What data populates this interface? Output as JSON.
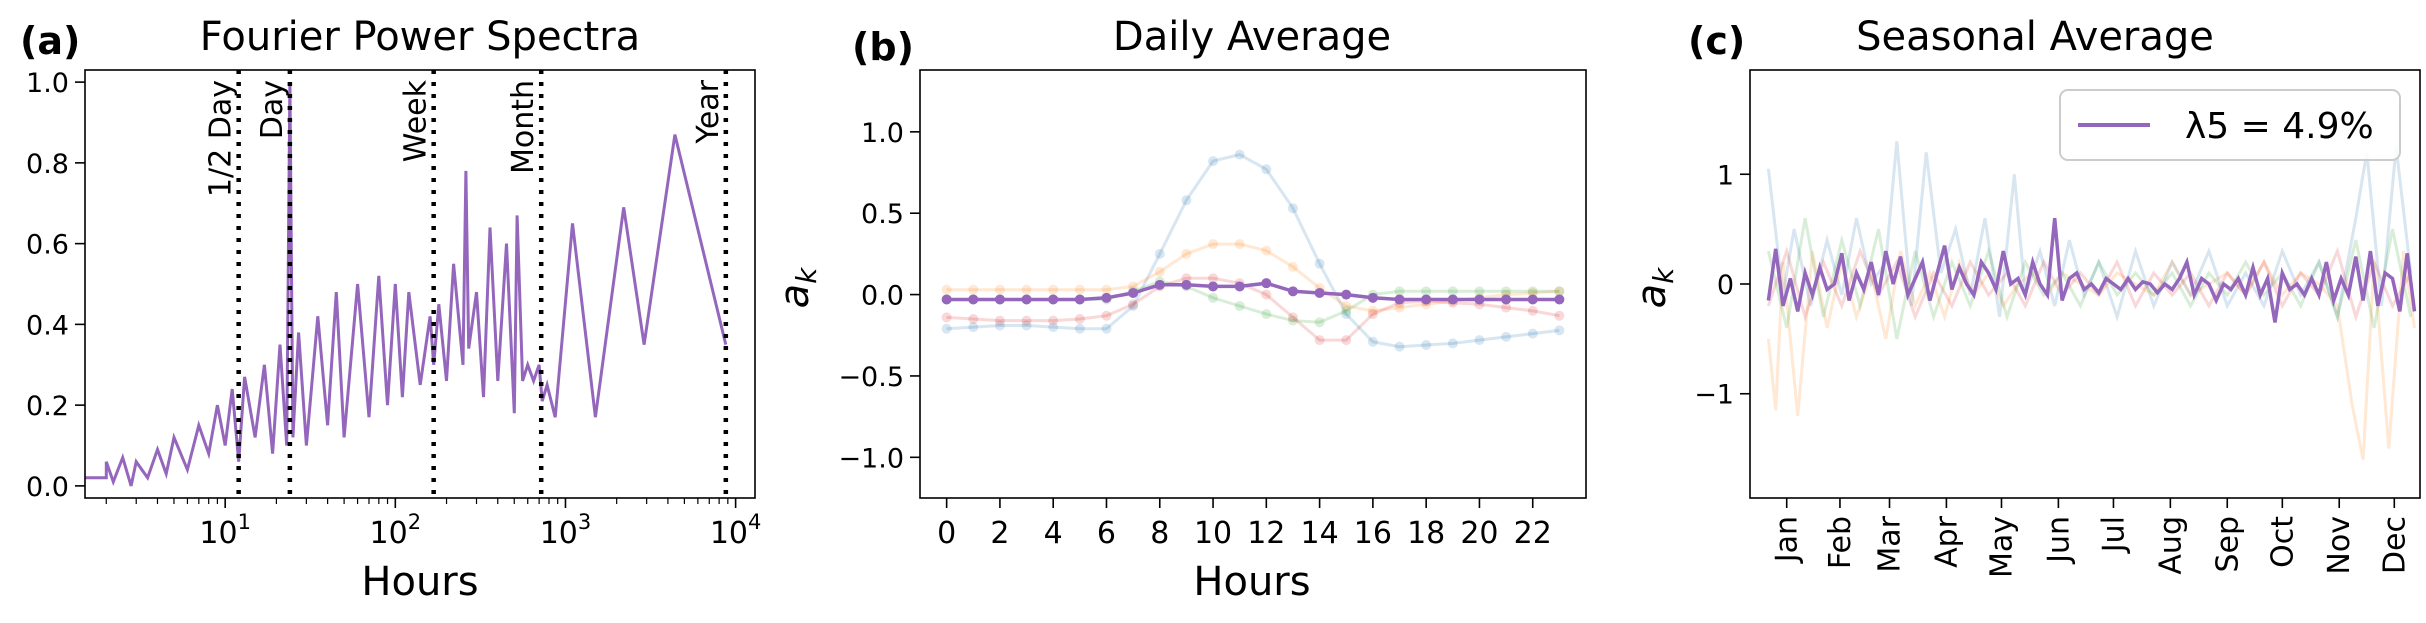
{
  "colors": {
    "main": "#9467bd",
    "faint": [
      "#1f77b4",
      "#ff7f0e",
      "#2ca02c",
      "#d62728"
    ],
    "marker_line": "#000000"
  },
  "chart_data": [
    {
      "type": "line",
      "panel_label": "(a)",
      "title": "Fourier Power Spectra",
      "xlabel": "Hours",
      "ylabel": "",
      "x_scale": "log",
      "xlim": [
        1.5,
        13000
      ],
      "ylim": [
        -0.03,
        1.03
      ],
      "x_ticks": [
        {
          "value": 10,
          "base": "10",
          "exp": "1"
        },
        {
          "value": 100,
          "base": "10",
          "exp": "2"
        },
        {
          "value": 1000,
          "base": "10",
          "exp": "3"
        },
        {
          "value": 10000,
          "base": "10",
          "exp": "4"
        }
      ],
      "y_ticks": [
        "0.0",
        "0.2",
        "0.4",
        "0.6",
        "0.8",
        "1.0"
      ],
      "y_tick_values": [
        0,
        0.2,
        0.4,
        0.6,
        0.8,
        1.0
      ],
      "markers": [
        {
          "label": "1/2 Day",
          "x": 12
        },
        {
          "label": "Day",
          "x": 24
        },
        {
          "label": "Week",
          "x": 168
        },
        {
          "label": "Month",
          "x": 720
        },
        {
          "label": "Year",
          "x": 8760
        }
      ],
      "series": [
        {
          "x": [
            1.5,
            2.0,
            2.0,
            2.2,
            2.5,
            2.8,
            3.0,
            3.5,
            4.0,
            4.5,
            5.0,
            6.0,
            7.0,
            8.0,
            9.0,
            10.0,
            11.0,
            12.0,
            13.0,
            15.0,
            17.0,
            19.0,
            21.0,
            23.0,
            24.0,
            25.0,
            27.0,
            30.0,
            35.0,
            40.0,
            45.0,
            50.0,
            60.0,
            70.0,
            80.0,
            90.0,
            100.0,
            110.0,
            120.0,
            140.0,
            160.0,
            168.0,
            180.0,
            200.0,
            220.0,
            250.0,
            260.0,
            270.0,
            300.0,
            330.0,
            360.0,
            400.0,
            450.0,
            500.0,
            520.0,
            560.0,
            600.0,
            650.0,
            700.0,
            730.0,
            780.0,
            870.0,
            1100.0,
            1500.0,
            2200.0,
            2900.0,
            4400.0,
            8760.0
          ],
          "y": [
            0.02,
            0.02,
            0.06,
            0.01,
            0.07,
            0.0,
            0.06,
            0.02,
            0.09,
            0.03,
            0.12,
            0.04,
            0.15,
            0.08,
            0.2,
            0.1,
            0.24,
            0.06,
            0.27,
            0.12,
            0.3,
            0.08,
            0.35,
            0.1,
            1.0,
            0.12,
            0.38,
            0.1,
            0.42,
            0.15,
            0.48,
            0.12,
            0.5,
            0.17,
            0.52,
            0.2,
            0.5,
            0.22,
            0.48,
            0.25,
            0.42,
            0.3,
            0.45,
            0.26,
            0.55,
            0.3,
            0.78,
            0.34,
            0.48,
            0.22,
            0.64,
            0.26,
            0.6,
            0.18,
            0.67,
            0.26,
            0.3,
            0.26,
            0.3,
            0.21,
            0.25,
            0.17,
            0.65,
            0.17,
            0.69,
            0.35,
            0.87,
            0.35
          ]
        }
      ]
    },
    {
      "type": "line",
      "panel_label": "(b)",
      "title": "Daily Average",
      "xlabel": "Hours",
      "ylabel": "a_k",
      "xlim": [
        -1,
        24
      ],
      "ylim": [
        -1.25,
        1.38
      ],
      "x_ticks": [
        "0",
        "2",
        "4",
        "6",
        "8",
        "10",
        "12",
        "14",
        "16",
        "18",
        "20",
        "22"
      ],
      "x_tick_values": [
        0,
        2,
        4,
        6,
        8,
        10,
        12,
        14,
        16,
        18,
        20,
        22
      ],
      "y_ticks": [
        "1.0",
        "0.5",
        "0.0",
        "−0.5",
        "−1.0"
      ],
      "y_tick_values": [
        1.0,
        0.5,
        0.0,
        -0.5,
        -1.0
      ],
      "x": [
        0,
        1,
        2,
        3,
        4,
        5,
        6,
        7,
        8,
        9,
        10,
        11,
        12,
        13,
        14,
        15,
        16,
        17,
        18,
        19,
        20,
        21,
        22,
        23
      ],
      "series": [
        {
          "y": [
            -0.21,
            -0.2,
            -0.19,
            -0.19,
            -0.2,
            -0.21,
            -0.21,
            -0.07,
            0.25,
            0.58,
            0.82,
            0.86,
            0.77,
            0.53,
            0.19,
            -0.12,
            -0.29,
            -0.32,
            -0.31,
            -0.3,
            -0.28,
            -0.26,
            -0.24,
            -0.22
          ]
        },
        {
          "y": [
            0.03,
            0.03,
            0.03,
            0.03,
            0.03,
            0.03,
            0.03,
            0.05,
            0.14,
            0.25,
            0.31,
            0.31,
            0.27,
            0.17,
            0.04,
            -0.07,
            -0.1,
            -0.08,
            -0.06,
            -0.04,
            -0.02,
            0.0,
            0.01,
            0.02
          ]
        },
        {
          "y": [
            -0.03,
            -0.03,
            -0.03,
            -0.03,
            -0.03,
            -0.03,
            -0.03,
            0.02,
            0.08,
            0.05,
            -0.02,
            -0.07,
            -0.12,
            -0.16,
            -0.17,
            -0.1,
            0.0,
            0.02,
            0.02,
            0.02,
            0.02,
            0.02,
            0.02,
            0.02
          ]
        },
        {
          "y": [
            -0.14,
            -0.15,
            -0.16,
            -0.16,
            -0.16,
            -0.15,
            -0.13,
            -0.06,
            0.05,
            0.1,
            0.1,
            0.07,
            0.0,
            -0.14,
            -0.28,
            -0.28,
            -0.12,
            -0.05,
            -0.04,
            -0.05,
            -0.06,
            -0.08,
            -0.1,
            -0.13
          ]
        },
        {
          "y": [
            -0.03,
            -0.03,
            -0.03,
            -0.03,
            -0.03,
            -0.03,
            -0.02,
            0.01,
            0.06,
            0.06,
            0.05,
            0.05,
            0.07,
            0.02,
            0.01,
            0.0,
            -0.02,
            -0.03,
            -0.03,
            -0.03,
            -0.03,
            -0.03,
            -0.03,
            -0.03
          ]
        }
      ]
    },
    {
      "type": "line",
      "panel_label": "(c)",
      "title": "Seasonal Average",
      "xlabel": "",
      "ylabel": "a_k",
      "legend": {
        "label": "λ5 = 4.9%",
        "placement": "top-right"
      },
      "xlim": [
        0,
        365
      ],
      "ylim": [
        -1.95,
        1.95
      ],
      "x_ticks": [
        "Jan",
        "Feb",
        "Mar",
        "Apr",
        "May",
        "Jun",
        "Jul",
        "Aug",
        "Sep",
        "Oct",
        "Nov",
        "Dec"
      ],
      "x_tick_values": [
        20,
        49,
        76,
        107,
        137,
        168,
        198,
        229,
        260,
        290,
        321,
        351
      ],
      "y_ticks": [
        "1",
        "0",
        "−1"
      ],
      "y_tick_values": [
        1,
        0,
        -1
      ],
      "series_note": "faint noisy series (4) plus bold series; approximate",
      "series": [
        {
          "x": [
            10,
            18,
            24,
            33,
            42,
            50,
            58,
            66,
            74,
            80,
            88,
            96,
            104,
            112,
            120,
            128,
            136,
            144,
            150,
            158,
            166,
            174,
            182,
            190,
            200,
            210,
            220,
            230,
            240,
            250,
            260,
            270,
            280,
            290,
            300,
            310,
            320,
            330,
            336,
            344,
            352,
            360
          ],
          "y": [
            1.05,
            -0.1,
            0.5,
            -0.2,
            0.4,
            -0.1,
            0.6,
            0.0,
            0.2,
            1.3,
            -0.2,
            1.2,
            0.1,
            0.5,
            -0.1,
            0.6,
            -0.3,
            1.0,
            -0.1,
            0.3,
            -0.2,
            0.4,
            -0.1,
            0.2,
            -0.3,
            0.3,
            -0.2,
            0.2,
            -0.1,
            0.3,
            -0.2,
            0.1,
            -0.2,
            0.3,
            -0.1,
            0.2,
            -0.3,
            0.6,
            1.2,
            -0.2,
            1.25,
            0.1
          ]
        },
        {
          "x": [
            10,
            14,
            18,
            26,
            34,
            42,
            50,
            58,
            66,
            74,
            82,
            90,
            98,
            106,
            114,
            122,
            130,
            138,
            146,
            154,
            162,
            170,
            180,
            190,
            200,
            210,
            220,
            230,
            240,
            250,
            260,
            270,
            280,
            290,
            300,
            310,
            320,
            328,
            334,
            340,
            348,
            356,
            362
          ],
          "y": [
            -0.5,
            -1.15,
            0.2,
            -1.2,
            0.3,
            -0.4,
            0.2,
            -0.3,
            0.1,
            -0.5,
            0.3,
            -0.2,
            0.1,
            -0.3,
            0.2,
            -0.1,
            0.1,
            -0.2,
            0.0,
            0.1,
            -0.1,
            0.1,
            0.0,
            -0.1,
            0.1,
            0.0,
            -0.1,
            0.2,
            -0.1,
            0.0,
            0.1,
            -0.1,
            0.2,
            -0.1,
            0.1,
            0.0,
            -0.2,
            -1.1,
            -1.6,
            0.2,
            -1.5,
            0.3,
            -0.4
          ]
        },
        {
          "x": [
            10,
            20,
            30,
            40,
            50,
            60,
            70,
            80,
            90,
            100,
            110,
            120,
            130,
            140,
            150,
            160,
            170,
            180,
            190,
            200,
            210,
            220,
            230,
            240,
            250,
            260,
            270,
            280,
            290,
            300,
            310,
            320,
            330,
            340,
            350,
            360
          ],
          "y": [
            0.3,
            -0.4,
            0.6,
            -0.3,
            0.4,
            -0.2,
            0.5,
            -0.5,
            0.3,
            -0.3,
            0.2,
            -0.2,
            0.3,
            -0.3,
            0.2,
            -0.1,
            0.1,
            -0.2,
            0.2,
            -0.1,
            0.1,
            -0.1,
            0.1,
            -0.2,
            0.1,
            -0.1,
            0.2,
            -0.1,
            0.1,
            -0.2,
            0.2,
            -0.3,
            0.4,
            -0.4,
            0.5,
            -0.3
          ]
        },
        {
          "x": [
            10,
            20,
            30,
            40,
            50,
            60,
            70,
            80,
            90,
            100,
            110,
            120,
            130,
            140,
            150,
            160,
            170,
            180,
            190,
            200,
            210,
            220,
            230,
            240,
            250,
            260,
            270,
            280,
            290,
            300,
            310,
            320,
            330,
            340,
            350,
            360
          ],
          "y": [
            -0.2,
            0.3,
            -0.3,
            0.2,
            -0.2,
            0.3,
            -0.1,
            0.2,
            -0.3,
            0.1,
            -0.2,
            0.2,
            -0.1,
            0.1,
            -0.2,
            0.2,
            -0.1,
            0.1,
            -0.1,
            0.2,
            -0.2,
            0.1,
            -0.1,
            0.1,
            -0.2,
            0.1,
            -0.1,
            0.2,
            -0.2,
            0.1,
            -0.1,
            0.3,
            -0.3,
            0.2,
            -0.2,
            0.1
          ]
        },
        {
          "x": [
            10,
            14,
            18,
            22,
            26,
            30,
            34,
            38,
            42,
            46,
            50,
            54,
            58,
            62,
            66,
            70,
            74,
            78,
            82,
            86,
            90,
            94,
            98,
            102,
            106,
            110,
            114,
            118,
            122,
            126,
            130,
            134,
            138,
            142,
            146,
            150,
            154,
            158,
            162,
            166,
            170,
            174,
            178,
            182,
            186,
            190,
            194,
            198,
            202,
            206,
            210,
            214,
            218,
            222,
            226,
            230,
            234,
            238,
            242,
            246,
            250,
            254,
            258,
            262,
            266,
            270,
            274,
            278,
            282,
            286,
            290,
            294,
            298,
            302,
            306,
            310,
            314,
            318,
            322,
            326,
            330,
            334,
            338,
            342,
            346,
            350,
            354,
            358,
            362
          ],
          "y": [
            -0.15,
            0.32,
            -0.2,
            0.05,
            -0.25,
            0.1,
            -0.1,
            0.15,
            -0.05,
            0.0,
            0.28,
            -0.15,
            0.1,
            -0.05,
            0.2,
            -0.1,
            0.3,
            0.0,
            0.25,
            -0.1,
            0.05,
            0.2,
            -0.15,
            0.1,
            0.35,
            -0.05,
            0.15,
            0.0,
            -0.1,
            0.2,
            0.1,
            -0.05,
            0.3,
            0.0,
            0.05,
            -0.1,
            0.2,
            0.0,
            -0.1,
            0.6,
            -0.15,
            0.05,
            0.1,
            -0.05,
            0.0,
            -0.08,
            0.05,
            0.0,
            -0.05,
            0.05,
            -0.05,
            0.02,
            0.0,
            -0.08,
            0.0,
            -0.05,
            0.05,
            0.2,
            -0.1,
            0.05,
            0.0,
            -0.15,
            0.0,
            -0.05,
            0.05,
            -0.1,
            0.15,
            -0.1,
            0.05,
            -0.35,
            0.1,
            -0.05,
            0.0,
            -0.1,
            0.05,
            -0.1,
            0.2,
            -0.15,
            0.05,
            -0.1,
            0.25,
            -0.15,
            0.3,
            -0.2,
            0.1,
            0.05,
            -0.25,
            0.28,
            -0.25
          ]
        }
      ]
    }
  ]
}
